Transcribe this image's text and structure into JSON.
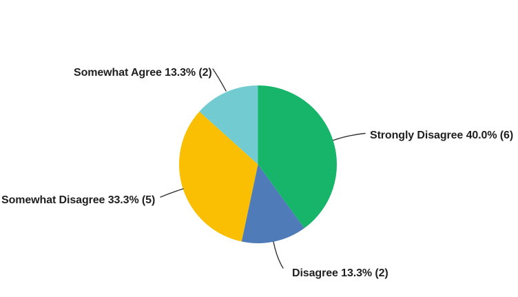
{
  "chart_data": {
    "type": "pie",
    "title": "",
    "legend": "none",
    "background_color": "#ffffff",
    "label_color": "#202020",
    "leader_line_color": "#333333",
    "direction": "clockwise",
    "start_angle_deg": 0,
    "slices": [
      {
        "label": "Strongly Disagree",
        "pct": 40.0,
        "count": 6,
        "color": "#16b56a",
        "display": "Strongly Disagree 40.0% (6)"
      },
      {
        "label": "Disagree",
        "pct": 13.3,
        "count": 2,
        "color": "#4f7cb8",
        "display": "Disagree 13.3% (2)"
      },
      {
        "label": "Somewhat Disagree",
        "pct": 33.3,
        "count": 5,
        "color": "#fabe02",
        "display": "Somewhat Disagree 33.3% (5)"
      },
      {
        "label": "Somewhat Agree",
        "pct": 13.3,
        "count": 2,
        "color": "#71cbd0",
        "display": "Somewhat Agree 13.3% (2)"
      }
    ]
  }
}
